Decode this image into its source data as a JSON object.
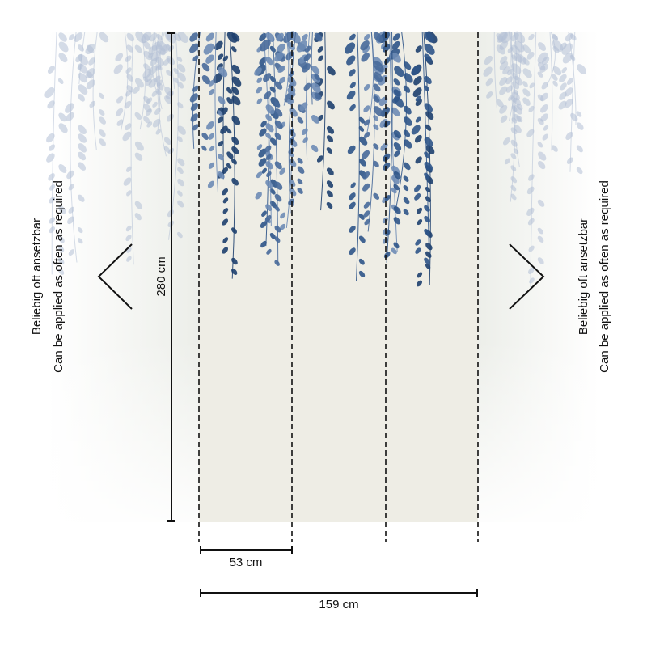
{
  "dimensions": {
    "height": "280 cm",
    "panel_width": "53 cm",
    "total_width": "159 cm"
  },
  "left_note": {
    "de": "Beliebig oft ansetzbar",
    "en": "Can be applied as often as required"
  },
  "right_note": {
    "de": "Beliebig oft ansetzbar",
    "en": "Can be applied as often as required"
  }
}
